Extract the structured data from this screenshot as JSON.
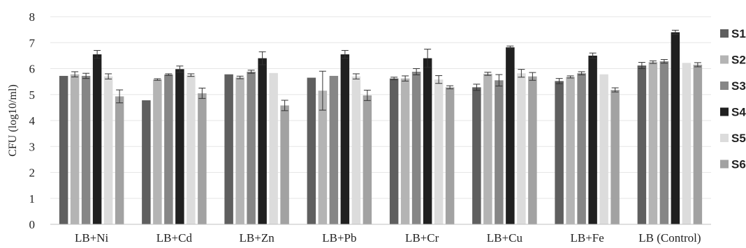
{
  "chart_data": {
    "type": "bar",
    "title": "",
    "xlabel": "",
    "ylabel": "CFU (log10/ml)",
    "ylim": [
      0,
      8
    ],
    "yticks": [
      0,
      1,
      2,
      3,
      4,
      5,
      6,
      7,
      8
    ],
    "grid": true,
    "legend_position": "right",
    "categories": [
      "LB+Ni",
      "LB+Cd",
      "LB+Zn",
      "LB+Pb",
      "LB+Cr",
      "LB+Cu",
      "LB+Fe",
      "LB (Control)"
    ],
    "series": [
      {
        "name": "S1",
        "color": "#5f5f5f",
        "values": [
          5.72,
          4.78,
          5.78,
          5.65,
          5.62,
          5.28,
          5.52,
          6.12
        ],
        "errors": [
          0.0,
          0.0,
          0.0,
          0.0,
          0.05,
          0.12,
          0.1,
          0.12
        ]
      },
      {
        "name": "S2",
        "color": "#b4b4b4",
        "values": [
          5.78,
          5.58,
          5.66,
          5.15,
          5.62,
          5.8,
          5.68,
          6.25
        ],
        "errors": [
          0.1,
          0.03,
          0.05,
          0.75,
          0.1,
          0.06,
          0.04,
          0.05
        ]
      },
      {
        "name": "S3",
        "color": "#868686",
        "values": [
          5.72,
          5.77,
          5.88,
          5.72,
          5.88,
          5.55,
          5.82,
          6.28
        ],
        "errors": [
          0.1,
          0.03,
          0.06,
          0.0,
          0.12,
          0.22,
          0.06,
          0.07
        ]
      },
      {
        "name": "S4",
        "color": "#202020",
        "values": [
          6.55,
          5.98,
          6.4,
          6.55,
          6.4,
          6.82,
          6.5,
          7.4
        ],
        "errors": [
          0.15,
          0.12,
          0.25,
          0.15,
          0.35,
          0.05,
          0.1,
          0.08
        ]
      },
      {
        "name": "S5",
        "color": "#dcdcdc",
        "values": [
          5.7,
          5.75,
          5.83,
          5.7,
          5.58,
          5.82,
          5.78,
          6.22
        ],
        "errors": [
          0.1,
          0.05,
          0.0,
          0.1,
          0.15,
          0.15,
          0.0,
          0.0
        ]
      },
      {
        "name": "S6",
        "color": "#a2a2a2",
        "values": [
          4.93,
          5.05,
          4.58,
          4.97,
          5.28,
          5.7,
          5.18,
          6.15
        ],
        "errors": [
          0.25,
          0.2,
          0.2,
          0.2,
          0.06,
          0.15,
          0.08,
          0.08
        ]
      }
    ]
  }
}
